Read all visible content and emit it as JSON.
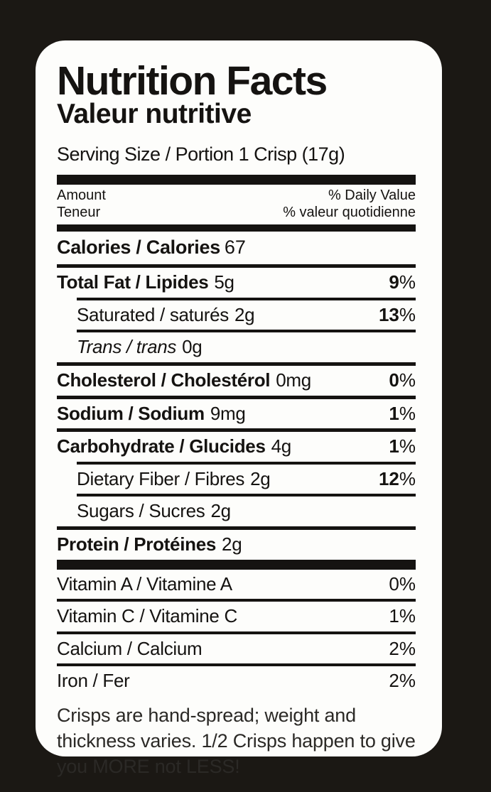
{
  "label": {
    "colors": {
      "background": "#1b1814",
      "card": "#fdfdfb",
      "ink": "#151311"
    },
    "title": "Nutrition Facts",
    "subtitle": "Valeur nutritive",
    "serving": "Serving Size / Portion 1 Crisp (17g)",
    "columns": {
      "amount_en": "Amount",
      "amount_fr": "Teneur",
      "daily_value_en": "% Daily Value",
      "daily_value_fr": "% valeur quotidienne"
    },
    "calories": {
      "label": "Calories / Calories",
      "value": "67"
    },
    "rows": [
      {
        "label": "Total Fat / Lipides",
        "amount": "5g",
        "dv": "9",
        "pct": "%"
      },
      {
        "label": "Saturated / saturés",
        "amount": "2g",
        "dv": "13",
        "pct": "%"
      },
      {
        "label": "Trans / trans",
        "amount": "0g",
        "dv": "",
        "pct": ""
      },
      {
        "label": "Cholesterol / Cholestérol",
        "amount": "0mg",
        "dv": "0",
        "pct": "%"
      },
      {
        "label": "Sodium / Sodium",
        "amount": "9mg",
        "dv": "1",
        "pct": "%"
      },
      {
        "label": "Carbohydrate / Glucides",
        "amount": "4g",
        "dv": "1",
        "pct": "%"
      },
      {
        "label": "Dietary Fiber / Fibres",
        "amount": "2g",
        "dv": "12",
        "pct": "%"
      },
      {
        "label": "Sugars / Sucres",
        "amount": "2g",
        "dv": "",
        "pct": ""
      },
      {
        "label": "Protein / Protéines",
        "amount": "2g",
        "dv": "",
        "pct": ""
      }
    ],
    "vitamins": [
      {
        "label": "Vitamin A / Vitamine A",
        "dv": "0%"
      },
      {
        "label": "Vitamin C / Vitamine C",
        "dv": "1%"
      },
      {
        "label": "Calcium / Calcium",
        "dv": "2%"
      },
      {
        "label": "Iron / Fer",
        "dv": "2%"
      }
    ],
    "note": "Crisps are hand-spread; weight and thickness varies. 1/2 Crisps happen to give you MORE not LESS!"
  }
}
